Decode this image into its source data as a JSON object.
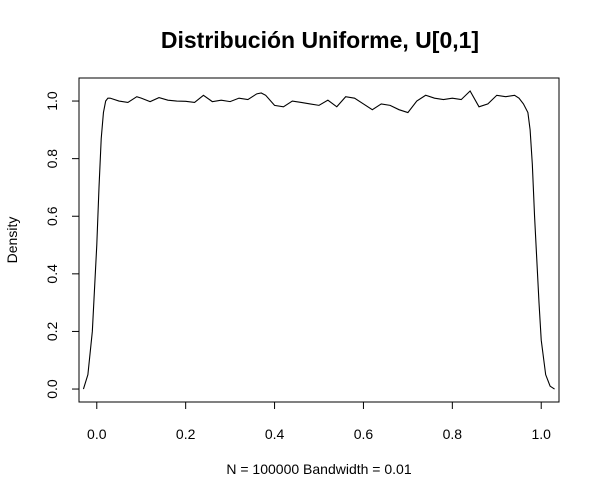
{
  "chart_data": {
    "type": "line",
    "title": "Distribución Uniforme, U[0,1]",
    "xlabel": "N = 100000   Bandwidth = 0.01",
    "ylabel": "Density",
    "xlim": [
      -0.04,
      1.04
    ],
    "ylim": [
      -0.045,
      1.08
    ],
    "x_ticks": [
      "0.0",
      "0.2",
      "0.4",
      "0.6",
      "0.8",
      "1.0"
    ],
    "y_ticks": [
      "0.0",
      "0.2",
      "0.4",
      "0.6",
      "0.8",
      "1.0"
    ],
    "grid": false,
    "series": [
      {
        "color": "#000000",
        "x": [
          -0.03,
          -0.02,
          -0.01,
          0.0,
          0.005,
          0.01,
          0.015,
          0.02,
          0.025,
          0.03,
          0.05,
          0.07,
          0.09,
          0.1,
          0.12,
          0.14,
          0.16,
          0.18,
          0.2,
          0.22,
          0.24,
          0.26,
          0.28,
          0.3,
          0.32,
          0.34,
          0.36,
          0.37,
          0.38,
          0.4,
          0.42,
          0.44,
          0.46,
          0.48,
          0.5,
          0.52,
          0.54,
          0.56,
          0.58,
          0.6,
          0.62,
          0.64,
          0.66,
          0.68,
          0.7,
          0.72,
          0.74,
          0.76,
          0.78,
          0.8,
          0.82,
          0.84,
          0.86,
          0.88,
          0.9,
          0.92,
          0.94,
          0.95,
          0.96,
          0.97,
          0.975,
          0.98,
          0.985,
          0.99,
          0.995,
          1.0,
          1.01,
          1.02,
          1.03
        ],
        "y": [
          0.0,
          0.05,
          0.2,
          0.5,
          0.7,
          0.87,
          0.96,
          1.0,
          1.01,
          1.01,
          1.0,
          0.995,
          1.015,
          1.01,
          0.998,
          1.012,
          1.003,
          1.0,
          0.999,
          0.995,
          1.02,
          0.998,
          1.003,
          0.998,
          1.01,
          1.005,
          1.025,
          1.028,
          1.02,
          0.985,
          0.98,
          1.0,
          0.995,
          0.99,
          0.985,
          1.003,
          0.98,
          1.015,
          1.01,
          0.99,
          0.97,
          0.99,
          0.985,
          0.97,
          0.96,
          1.0,
          1.02,
          1.01,
          1.005,
          1.01,
          1.005,
          1.035,
          0.98,
          0.99,
          1.02,
          1.015,
          1.02,
          1.01,
          0.99,
          0.96,
          0.9,
          0.78,
          0.6,
          0.45,
          0.3,
          0.17,
          0.05,
          0.01,
          0.0
        ]
      }
    ]
  }
}
